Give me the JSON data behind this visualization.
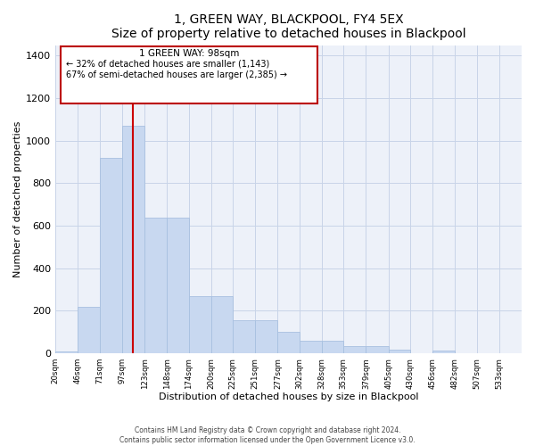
{
  "title": "1, GREEN WAY, BLACKPOOL, FY4 5EX",
  "subtitle": "Size of property relative to detached houses in Blackpool",
  "xlabel": "Distribution of detached houses by size in Blackpool",
  "ylabel": "Number of detached properties",
  "footer_line1": "Contains HM Land Registry data © Crown copyright and database right 2024.",
  "footer_line2": "Contains public sector information licensed under the Open Government Licence v3.0.",
  "bar_color": "#c8d8f0",
  "bar_edge_color": "#a8c0e0",
  "grid_color": "#c8d4e8",
  "background_color": "#edf1f9",
  "annotation_box_edgecolor": "#bb0000",
  "property_label": "1 GREEN WAY: 98sqm",
  "annotation_line1": "← 32% of detached houses are smaller (1,143)",
  "annotation_line2": "67% of semi-detached houses are larger (2,385) →",
  "xtick_labels": [
    "20sqm",
    "46sqm",
    "71sqm",
    "97sqm",
    "123sqm",
    "148sqm",
    "174sqm",
    "200sqm",
    "225sqm",
    "251sqm",
    "277sqm",
    "302sqm",
    "328sqm",
    "353sqm",
    "379sqm",
    "405sqm",
    "430sqm",
    "456sqm",
    "482sqm",
    "507sqm",
    "533sqm"
  ],
  "bin_left_edges": [
    7,
    33,
    58,
    84,
    110,
    136,
    161,
    187,
    212,
    238,
    264,
    289,
    315,
    340,
    366,
    392,
    417,
    443,
    469,
    494,
    520
  ],
  "bin_heights": [
    10,
    220,
    920,
    1070,
    640,
    640,
    270,
    270,
    155,
    155,
    100,
    60,
    60,
    35,
    35,
    18,
    0,
    12,
    0,
    2,
    0
  ],
  "xlim": [
    7,
    546
  ],
  "ylim": [
    0,
    1450
  ],
  "yticks": [
    0,
    200,
    400,
    600,
    800,
    1000,
    1200,
    1400
  ],
  "vline_x": 97,
  "vline_color": "#cc0000"
}
